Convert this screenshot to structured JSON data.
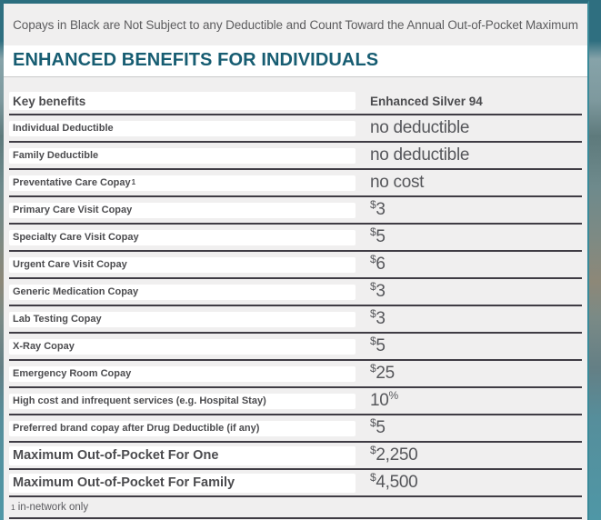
{
  "page": {
    "notice": "Copays in Black are Not Subject to any Deductible and Count Toward the Annual Out-of-Pocket Maximum",
    "title": "ENHANCED BENEFITS FOR INDIVIDUALS"
  },
  "table": {
    "header": {
      "benefit_col": "Key benefits",
      "plan_col": "Enhanced Silver 94"
    },
    "rows": [
      {
        "label": "Individual Deductible",
        "sup": "",
        "value": {
          "pre": "",
          "text": "no deductible",
          "suf": ""
        },
        "emphasis": false
      },
      {
        "label": "Family Deductible",
        "sup": "",
        "value": {
          "pre": "",
          "text": "no deductible",
          "suf": ""
        },
        "emphasis": false
      },
      {
        "label": "Preventative Care Copay",
        "sup": "1",
        "value": {
          "pre": "",
          "text": "no cost",
          "suf": ""
        },
        "emphasis": false
      },
      {
        "label": "Primary Care Visit Copay",
        "sup": "",
        "value": {
          "pre": "$",
          "text": "3",
          "suf": ""
        },
        "emphasis": false
      },
      {
        "label": "Specialty Care Visit Copay",
        "sup": "",
        "value": {
          "pre": "$",
          "text": "5",
          "suf": ""
        },
        "emphasis": false
      },
      {
        "label": "Urgent Care Visit Copay",
        "sup": "",
        "value": {
          "pre": "$",
          "text": "6",
          "suf": ""
        },
        "emphasis": false
      },
      {
        "label": "Generic Medication Copay",
        "sup": "",
        "value": {
          "pre": "$",
          "text": "3",
          "suf": ""
        },
        "emphasis": false
      },
      {
        "label": "Lab Testing Copay",
        "sup": "",
        "value": {
          "pre": "$",
          "text": "3",
          "suf": ""
        },
        "emphasis": false
      },
      {
        "label": "X-Ray Copay",
        "sup": "",
        "value": {
          "pre": "$",
          "text": "5",
          "suf": ""
        },
        "emphasis": false
      },
      {
        "label": "Emergency Room Copay",
        "sup": "",
        "value": {
          "pre": "$",
          "text": "25",
          "suf": ""
        },
        "emphasis": false
      },
      {
        "label": "High cost and infrequent services (e.g. Hospital Stay)",
        "sup": "",
        "value": {
          "pre": "",
          "text": "10",
          "suf": "%"
        },
        "emphasis": false
      },
      {
        "label": "Preferred brand copay after Drug Deductible (if any)",
        "sup": "",
        "value": {
          "pre": "$",
          "text": "5",
          "suf": ""
        },
        "emphasis": false
      },
      {
        "label": "Maximum Out-of-Pocket For One",
        "sup": "",
        "value": {
          "pre": "$",
          "text": "2,250",
          "suf": ""
        },
        "emphasis": true
      },
      {
        "label": "Maximum Out-of-Pocket For Family",
        "sup": "",
        "value": {
          "pre": "$",
          "text": "4,500",
          "suf": ""
        },
        "emphasis": true
      }
    ],
    "footnote": {
      "mark": "1",
      "text": "in-network only"
    }
  },
  "colors": {
    "accent_teal": "#2b6e7f",
    "title_teal": "#175d72",
    "row_separator": "#3f3c44",
    "text_gray": "#56575b",
    "table_bg": "#f0efef",
    "page_strip_teal": "#4f97a6"
  }
}
